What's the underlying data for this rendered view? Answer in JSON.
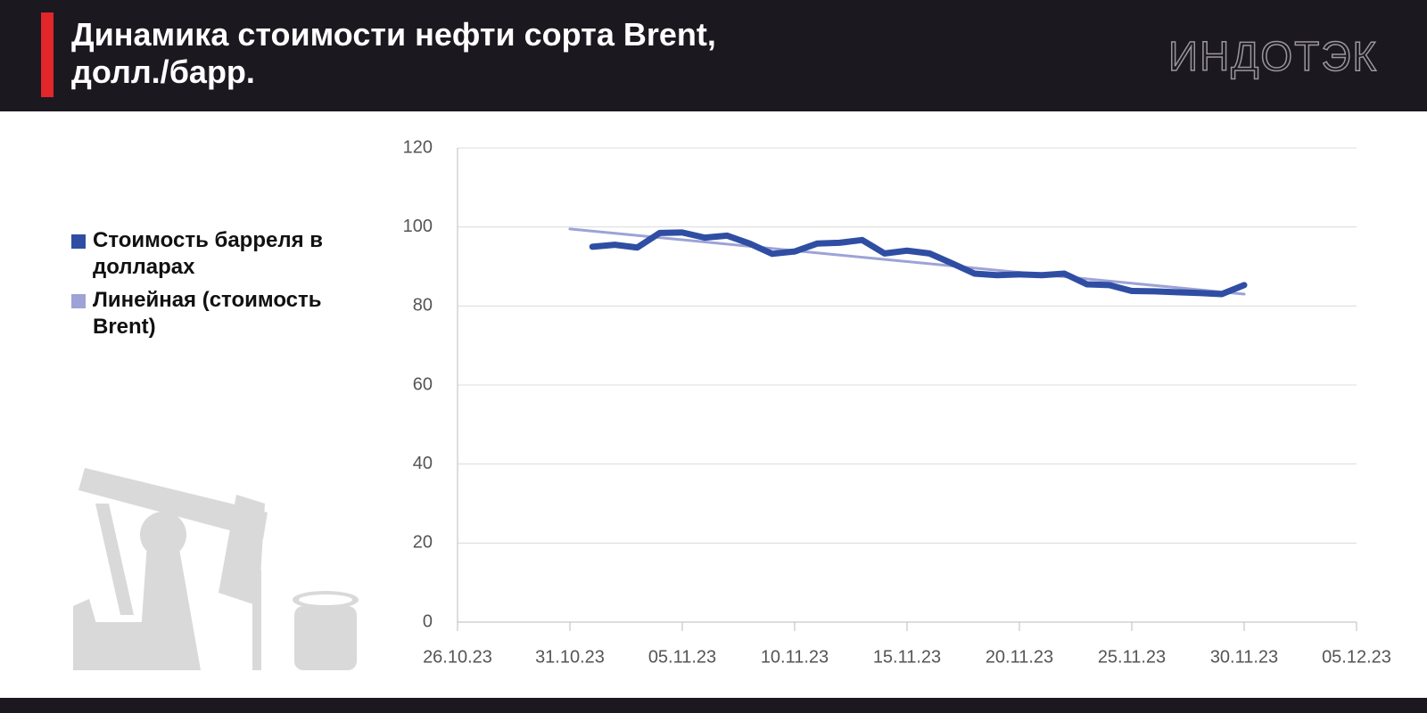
{
  "chart_data": {
    "type": "line",
    "title": "Динамика стоимости нефти сорта Brent, долл./барр.",
    "logo": "ИНДОТЭК",
    "x": [
      "01.11.23",
      "02.11.23",
      "03.11.23",
      "04.11.23",
      "05.11.23",
      "06.11.23",
      "07.11.23",
      "08.11.23",
      "09.11.23",
      "10.11.23",
      "11.11.23",
      "12.11.23",
      "13.11.23",
      "14.11.23",
      "15.11.23",
      "16.11.23",
      "17.11.23",
      "18.11.23",
      "19.11.23",
      "20.11.23",
      "21.11.23",
      "22.11.23",
      "23.11.23",
      "24.11.23",
      "25.11.23",
      "26.11.23",
      "27.11.23",
      "28.11.23",
      "29.11.23",
      "30.11.23"
    ],
    "series": [
      {
        "name": "Стоимость барреля в долларах",
        "color": "#2f4ea3",
        "values": [
          95,
          95.5,
          94.8,
          98.5,
          98.6,
          97.3,
          97.8,
          95.8,
          93.2,
          93.8,
          95.8,
          96.0,
          96.7,
          93.3,
          94.0,
          93.3,
          90.8,
          88.2,
          87.8,
          88.0,
          87.8,
          88.2,
          85.5,
          85.3,
          83.8,
          83.7,
          83.5,
          83.3,
          83.0,
          85.3
        ]
      },
      {
        "name": "Линейная (стоимость Brent)",
        "color": "#9da3d6",
        "x": [
          "31.10.23",
          "30.11.23"
        ],
        "values": [
          99.5,
          83
        ]
      }
    ],
    "xlim": [
      "26.10.23",
      "05.12.23"
    ],
    "xticks": [
      "26.10.23",
      "31.10.23",
      "05.11.23",
      "10.11.23",
      "15.11.23",
      "20.11.23",
      "25.11.23",
      "30.11.23",
      "05.12.23"
    ],
    "ylim": [
      0,
      120
    ],
    "yticks": [
      0,
      20,
      40,
      60,
      80,
      100,
      120
    ],
    "grid": true
  }
}
